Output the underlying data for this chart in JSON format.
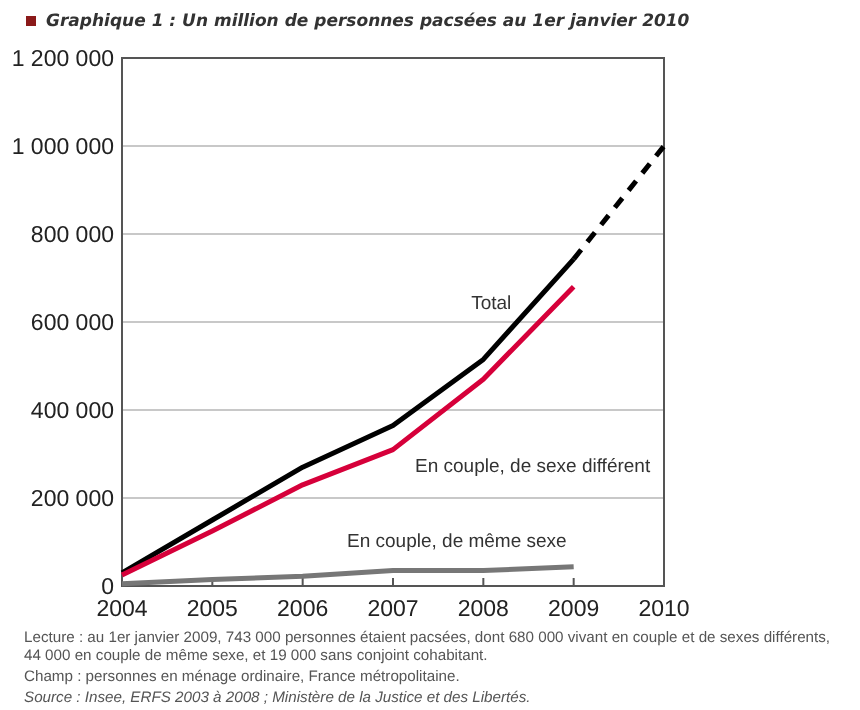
{
  "chart_data": {
    "type": "line",
    "title": "Graphique 1 : Un million de personnes pacsées au 1er janvier 2010",
    "x": [
      2004,
      2005,
      2006,
      2007,
      2008,
      2009
    ],
    "series": [
      {
        "name": "Total",
        "color": "#000000",
        "values": [
          30000,
          150000,
          270000,
          365000,
          515000,
          743000
        ]
      },
      {
        "name": "En couple, de sexe différent",
        "color": "#d6003a",
        "values": [
          25000,
          125000,
          230000,
          310000,
          470000,
          680000
        ]
      },
      {
        "name": "En couple, de même sexe",
        "color": "#777777",
        "values": [
          5000,
          15000,
          22000,
          35000,
          35000,
          44000
        ]
      },
      {
        "color": "#000000",
        "x": [
          2009,
          2010
        ],
        "values": [
          743000,
          1000000
        ],
        "line_style": "dashed"
      }
    ],
    "xlim": [
      2004,
      2010
    ],
    "xticks": [
      2004,
      2005,
      2006,
      2007,
      2008,
      2009,
      2010
    ],
    "ylim": [
      0,
      1200000
    ],
    "yticks": [
      {
        "value": 0,
        "label": "0"
      },
      {
        "value": 200000,
        "label": "200 000"
      },
      {
        "value": 400000,
        "label": "400 000"
      },
      {
        "value": 600000,
        "label": "600 000"
      },
      {
        "value": 800000,
        "label": "800 000"
      },
      {
        "value": 1000000,
        "label": "1 000 000"
      },
      {
        "value": 1200000,
        "label": "1 200 000"
      }
    ],
    "grid": "y",
    "marker": "none",
    "line_style": "solid",
    "annotations": [
      "Lecture : au 1er janvier 2009, 743 000 personnes étaient pacsées, dont 680 000 vivant en couple et de sexes différents, 44 000 en couple de même sexe, et 19 000 sans conjoint cohabitant.",
      "Champ : personnes en ménage ordinaire, France métropolitaine.",
      "Source : Insee, ERFS 2003 à 2008 ; Ministère de la Justice et des Libertés."
    ]
  }
}
